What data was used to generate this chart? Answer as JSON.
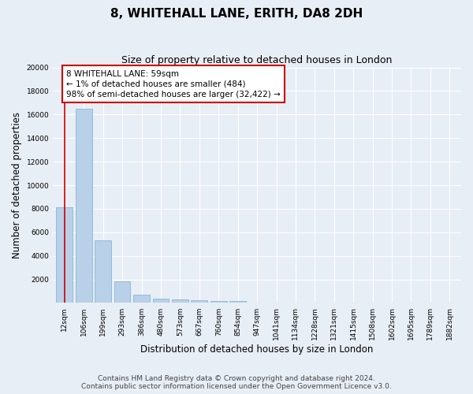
{
  "title": "8, WHITEHALL LANE, ERITH, DA8 2DH",
  "subtitle": "Size of property relative to detached houses in London",
  "xlabel": "Distribution of detached houses by size in London",
  "ylabel": "Number of detached properties",
  "categories": [
    "12sqm",
    "106sqm",
    "199sqm",
    "293sqm",
    "386sqm",
    "480sqm",
    "573sqm",
    "667sqm",
    "760sqm",
    "854sqm",
    "947sqm",
    "1041sqm",
    "1134sqm",
    "1228sqm",
    "1321sqm",
    "1415sqm",
    "1508sqm",
    "1602sqm",
    "1695sqm",
    "1789sqm",
    "1882sqm"
  ],
  "values": [
    8100,
    16500,
    5300,
    1850,
    700,
    350,
    270,
    220,
    180,
    150,
    0,
    0,
    0,
    0,
    0,
    0,
    0,
    0,
    0,
    0,
    0
  ],
  "bar_color": "#b8d0e8",
  "bar_edgecolor": "#7aafd4",
  "annotation_text": "8 WHITEHALL LANE: 59sqm\n← 1% of detached houses are smaller (484)\n98% of semi-detached houses are larger (32,422) →",
  "annotation_box_color": "#ffffff",
  "annotation_box_edgecolor": "#cc0000",
  "vline_color": "#cc0000",
  "fig_background_color": "#e8eef5",
  "ax_background_color": "#e8eef5",
  "grid_color": "#ffffff",
  "ylim": [
    0,
    20000
  ],
  "yticks": [
    0,
    2000,
    4000,
    6000,
    8000,
    10000,
    12000,
    14000,
    16000,
    18000,
    20000
  ],
  "footer_line1": "Contains HM Land Registry data © Crown copyright and database right 2024.",
  "footer_line2": "Contains public sector information licensed under the Open Government Licence v3.0.",
  "title_fontsize": 11,
  "subtitle_fontsize": 9,
  "xlabel_fontsize": 8.5,
  "ylabel_fontsize": 8.5,
  "tick_fontsize": 6.5,
  "footer_fontsize": 6.5,
  "annotation_fontsize": 7.5
}
